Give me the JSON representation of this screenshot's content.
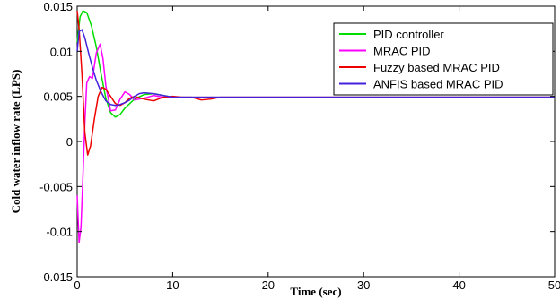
{
  "chart_data": {
    "type": "line",
    "title": "",
    "xlabel": "Time (sec)",
    "ylabel": "Cold water inflow rate (LPS)",
    "xlim": [
      0,
      50
    ],
    "ylim": [
      -0.015,
      0.015
    ],
    "x_ticks": [
      0,
      10,
      20,
      30,
      40,
      50
    ],
    "x_tick_labels": [
      "0",
      "10",
      "20",
      "30",
      "40",
      "50"
    ],
    "y_ticks": [
      -0.015,
      -0.01,
      -0.005,
      0,
      0.005,
      0.01,
      0.015
    ],
    "y_tick_labels": [
      "-0.015",
      "-0.01",
      "-0.005",
      "0",
      "0.005",
      "0.01",
      "0.015"
    ],
    "grid": false,
    "legend_position": "top-right",
    "series": [
      {
        "name": "PID controller",
        "color": "#00dd00",
        "x": [
          0,
          0.3,
          0.6,
          1.0,
          1.5,
          2.0,
          2.5,
          3.0,
          3.5,
          4.0,
          4.5,
          5.0,
          6.0,
          7.0,
          8.0,
          9.0,
          10,
          12,
          15,
          18,
          50
        ],
        "y": [
          0.011,
          0.0138,
          0.0145,
          0.0143,
          0.0128,
          0.0105,
          0.0075,
          0.0048,
          0.0032,
          0.0027,
          0.003,
          0.0037,
          0.0047,
          0.0052,
          0.0053,
          0.0051,
          0.0049,
          0.0049,
          0.0049,
          0.0049,
          0.0049
        ]
      },
      {
        "name": "MRAC PID",
        "color": "#ff00ff",
        "x": [
          0,
          0.2,
          0.4,
          0.6,
          0.8,
          1.0,
          1.3,
          1.6,
          2.0,
          2.4,
          2.7,
          3.0,
          3.5,
          4.0,
          4.5,
          5.0,
          5.5,
          6.0,
          7.0,
          8.0,
          9.0,
          10,
          12,
          15,
          20,
          50
        ],
        "y": [
          -0.006,
          -0.0112,
          -0.0095,
          -0.004,
          0.002,
          0.0065,
          0.0072,
          0.007,
          0.0098,
          0.0108,
          0.0092,
          0.0062,
          0.0034,
          0.0035,
          0.0047,
          0.0055,
          0.0052,
          0.0046,
          0.0048,
          0.0051,
          0.0049,
          0.0049,
          0.0049,
          0.0049,
          0.0049,
          0.0049
        ]
      },
      {
        "name": "Fuzzy based MRAC PID",
        "color": "#ee0000",
        "x": [
          0,
          0.2,
          0.5,
          0.8,
          1.1,
          1.4,
          1.8,
          2.2,
          2.6,
          3.0,
          3.5,
          4.0,
          4.5,
          5.0,
          5.5,
          6.0,
          7.0,
          8.0,
          9.0,
          10,
          11,
          12,
          13,
          14,
          15,
          17,
          20,
          30,
          35,
          50
        ],
        "y": [
          0.0145,
          0.0125,
          0.0075,
          0.001,
          -0.0015,
          -0.0005,
          0.0025,
          0.005,
          0.006,
          0.0058,
          0.005,
          0.0042,
          0.004,
          0.0043,
          0.0048,
          0.005,
          0.0047,
          0.0045,
          0.0049,
          0.005,
          0.0049,
          0.0049,
          0.0046,
          0.0047,
          0.0049,
          0.0049,
          0.0049,
          0.0049,
          0.0049,
          0.0049
        ]
      },
      {
        "name": "ANFIS based MRAC PID",
        "color": "#4422dd",
        "x": [
          0,
          0.2,
          0.5,
          0.8,
          1.2,
          1.6,
          2.0,
          2.5,
          3.0,
          3.5,
          4.0,
          4.5,
          5.0,
          5.5,
          6.0,
          6.5,
          7.0,
          8.0,
          9.0,
          10,
          12,
          15,
          20,
          50
        ],
        "y": [
          0.01,
          0.0122,
          0.0124,
          0.0115,
          0.0098,
          0.0082,
          0.0068,
          0.0055,
          0.0045,
          0.0041,
          0.004,
          0.0041,
          0.0043,
          0.0046,
          0.005,
          0.0053,
          0.0054,
          0.0053,
          0.0051,
          0.0049,
          0.0049,
          0.0049,
          0.0049,
          0.0049
        ]
      }
    ]
  }
}
